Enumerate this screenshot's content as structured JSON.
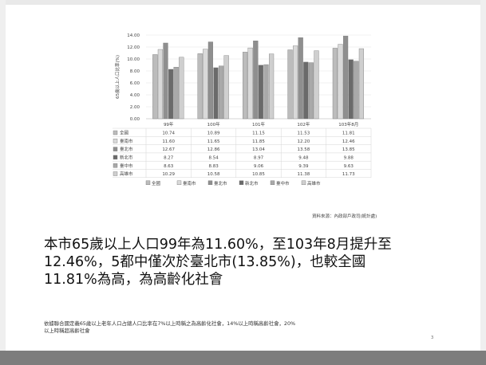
{
  "chart_data": {
    "type": "bar",
    "categories": [
      "99年",
      "100年",
      "101年",
      "102年",
      "103年8月"
    ],
    "ylabel": "65歲以上人口比率(%)",
    "ylim": [
      0,
      14
    ],
    "yticks": [
      "0.00",
      "2.00",
      "4.00",
      "6.00",
      "8.00",
      "10.00",
      "12.00",
      "14.00"
    ],
    "series": [
      {
        "name": "全國",
        "values": [
          10.74,
          10.89,
          11.15,
          11.53,
          11.81
        ],
        "labels": [
          "10.74",
          "10.89",
          "11.15",
          "11.53",
          "11.81"
        ],
        "color": "#bcbcbc"
      },
      {
        "name": "臺南市",
        "values": [
          11.6,
          11.65,
          11.85,
          12.2,
          12.46
        ],
        "labels": [
          "11.60",
          "11.65",
          "11.85",
          "12.20",
          "12.46"
        ],
        "color": "#d9d9d9"
      },
      {
        "name": "臺北市",
        "values": [
          12.67,
          12.86,
          13.04,
          13.58,
          13.85
        ],
        "labels": [
          "12.67",
          "12.86",
          "13.04",
          "13.58",
          "13.85"
        ],
        "color": "#8f8f8f"
      },
      {
        "name": "新北市",
        "values": [
          8.27,
          8.54,
          8.97,
          9.48,
          9.88
        ],
        "labels": [
          "8.27",
          "8.54",
          "8.97",
          "9.48",
          "9.88"
        ],
        "color": "#6a6a6a"
      },
      {
        "name": "臺中市",
        "values": [
          8.63,
          8.83,
          9.06,
          9.39,
          9.63
        ],
        "labels": [
          "8.63",
          "8.83",
          "9.06",
          "9.39",
          "9.63"
        ],
        "color": "#a9a9a9"
      },
      {
        "name": "高雄市",
        "values": [
          10.29,
          10.58,
          10.85,
          11.38,
          11.73
        ],
        "labels": [
          "10.29",
          "10.58",
          "10.85",
          "11.38",
          "11.73"
        ],
        "color": "#cfcfcf"
      }
    ],
    "table": true,
    "legend": "bottom",
    "grid": true
  },
  "source_note": "資料來源：內政部戶政司(統計處)",
  "main_text": {
    "line1": "本市65歲以上人口99年為11.60%，至103年8月提升至",
    "line2": "12.46%，5都中僅次於臺北市(13.85%)，也較全國",
    "line3": "11.81%為高，為高齡化社會"
  },
  "note": {
    "line1": "依據聯合國定義65歲以上老年人口占總人口比率在7%以上時稱之為高齡化社會，14%以上時稱高齡社會，20%",
    "line2": "以上時稱超高齡社會"
  },
  "slide_number": "3"
}
